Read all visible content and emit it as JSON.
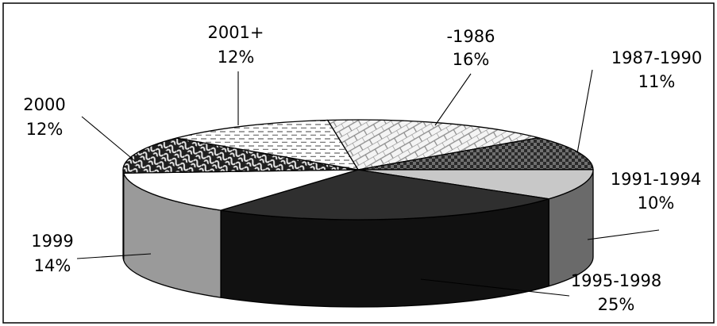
{
  "chart_data": {
    "type": "pie",
    "style": "3d-exploded-none",
    "title": "",
    "legend": "none",
    "slices": [
      {
        "label": "-1986",
        "percent": "16%",
        "value": 16,
        "pattern": "brick",
        "color": "#f2f2f2"
      },
      {
        "label": "1987-1990",
        "percent": "11%",
        "value": 11,
        "pattern": "checker",
        "color": "#5a5a5a"
      },
      {
        "label": "1991-1994",
        "percent": "10%",
        "value": 10,
        "pattern": "solid",
        "color": "#c8c8c8"
      },
      {
        "label": "1995-1998",
        "percent": "25%",
        "value": 25,
        "pattern": "solid",
        "color": "#2f2f2f"
      },
      {
        "label": "1999",
        "percent": "14%",
        "value": 14,
        "pattern": "solid",
        "color": "#ffffff"
      },
      {
        "label": "2000",
        "percent": "12%",
        "value": 12,
        "pattern": "weave",
        "color": "#3a3a3a"
      },
      {
        "label": "2001+",
        "percent": "12%",
        "value": 12,
        "pattern": "dashes",
        "color": "#ffffff"
      }
    ]
  }
}
